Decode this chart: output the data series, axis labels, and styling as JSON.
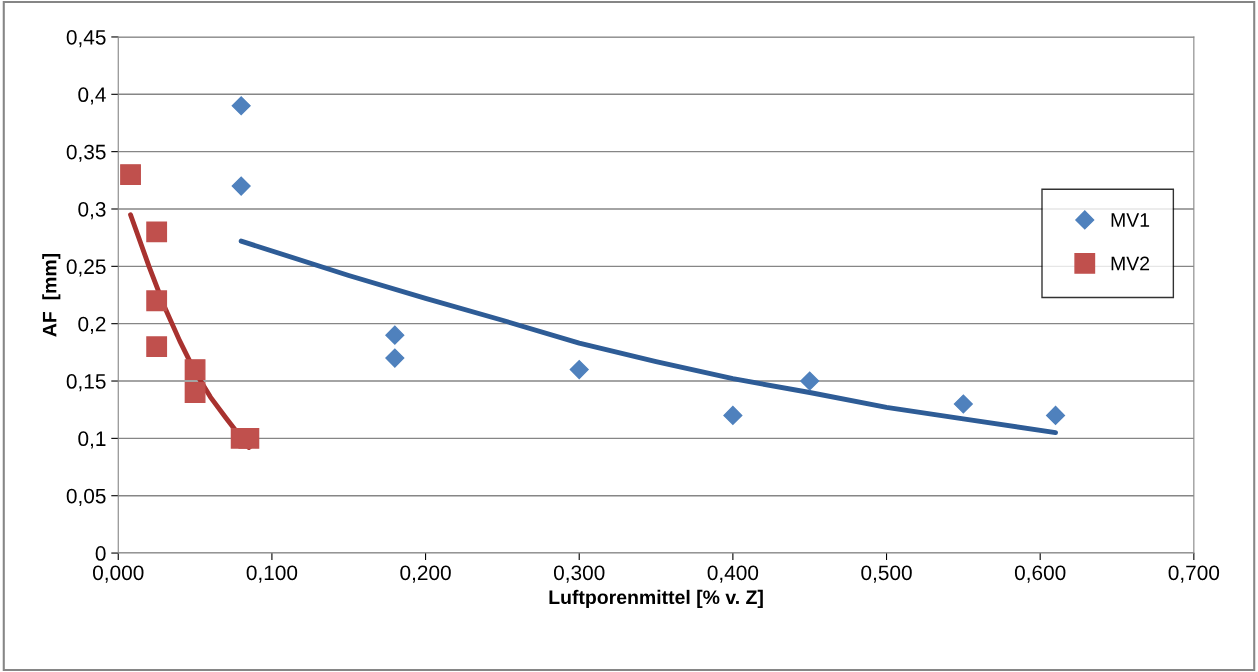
{
  "chart_data": {
    "type": "scatter",
    "xlabel": "Luftporenmittel [% v. Z]",
    "ylabel": "AF  [mm]",
    "xlim": [
      0,
      0.7
    ],
    "ylim": [
      0,
      0.45
    ],
    "xticks": [
      {
        "value": 0,
        "label": "0,000"
      },
      {
        "value": 0.1,
        "label": "0,100"
      },
      {
        "value": 0.2,
        "label": "0,200"
      },
      {
        "value": 0.3,
        "label": "0,300"
      },
      {
        "value": 0.4,
        "label": "0,400"
      },
      {
        "value": 0.5,
        "label": "0,500"
      },
      {
        "value": 0.6,
        "label": "0,600"
      },
      {
        "value": 0.7,
        "label": "0,700"
      }
    ],
    "yticks": [
      0,
      {
        "value": 0.05,
        "label": "0,05"
      },
      {
        "value": 0.1,
        "label": "0,1"
      },
      {
        "value": 0.15,
        "label": "0,15"
      },
      {
        "value": 0.2,
        "label": "0,2"
      },
      {
        "value": 0.25,
        "label": "0,25"
      },
      {
        "value": 0.3,
        "label": "0,3"
      },
      {
        "value": 0.35,
        "label": "0,35"
      },
      {
        "value": 0.4,
        "label": "0,4"
      },
      {
        "value": 0.45,
        "label": "0,45"
      }
    ],
    "grid": "y",
    "legend": "right",
    "series": [
      {
        "name": "MV1",
        "marker": "diamond",
        "color": "#4f81bd",
        "x": [
          0.08,
          0.08,
          0.18,
          0.18,
          0.3,
          0.4,
          0.45,
          0.55,
          0.61
        ],
        "values": [
          0.39,
          0.32,
          0.19,
          0.17,
          0.16,
          0.12,
          0.15,
          0.13,
          0.12
        ]
      },
      {
        "name": "MV2",
        "marker": "square",
        "color": "#c0504d",
        "x": [
          0.008,
          0.025,
          0.025,
          0.025,
          0.05,
          0.05,
          0.08,
          0.085
        ],
        "values": [
          0.33,
          0.28,
          0.22,
          0.18,
          0.16,
          0.14,
          0.1,
          0.1
        ]
      },
      {
        "type": "line",
        "marker": "none",
        "color": "#2e5c96",
        "x": [
          0.08,
          0.15,
          0.2,
          0.25,
          0.3,
          0.35,
          0.4,
          0.45,
          0.5,
          0.55,
          0.61
        ],
        "values": [
          0.272,
          0.242,
          0.222,
          0.203,
          0.183,
          0.167,
          0.152,
          0.14,
          0.127,
          0.117,
          0.105
        ]
      },
      {
        "type": "line",
        "marker": "none",
        "color": "#a8322f",
        "x": [
          0.008,
          0.02,
          0.03,
          0.04,
          0.05,
          0.06,
          0.07,
          0.085
        ],
        "values": [
          0.295,
          0.25,
          0.215,
          0.185,
          0.158,
          0.136,
          0.118,
          0.092
        ]
      }
    ]
  }
}
